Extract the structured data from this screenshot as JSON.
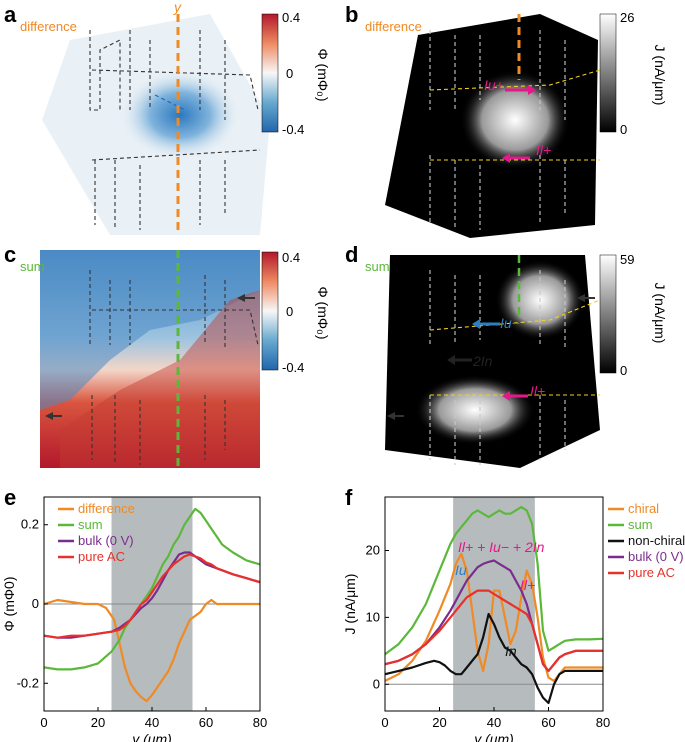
{
  "panels": {
    "a": {
      "label": "a",
      "tag": "difference",
      "cut_label": "y"
    },
    "b": {
      "label": "b",
      "tag": "difference"
    },
    "c": {
      "label": "c",
      "tag": "sum"
    },
    "d": {
      "label": "d",
      "tag": "sum"
    },
    "e": {
      "label": "e"
    },
    "f": {
      "label": "f"
    }
  },
  "colorbars": {
    "phi_diff": {
      "top": "0.4",
      "mid": "0",
      "bottom": "-0.4",
      "label": "Φ (mΦ₀)"
    },
    "j_diff": {
      "top": "26",
      "bottom": "0",
      "label": "J (nA/μm)"
    },
    "phi_sum": {
      "top": "0.4",
      "mid": "0",
      "bottom": "-0.4",
      "label": "Φ (mΦ₀)"
    },
    "j_sum": {
      "top": "59",
      "bottom": "0",
      "label": "J (nA/μm)"
    }
  },
  "annotations": {
    "b_upper": "Iu+",
    "b_lower": "Il+",
    "d_upper": "Iu−",
    "d_mid": "2In",
    "d_lower": "Il+",
    "f_sum_formula": "Il+ + Iu− + 2In",
    "f_iu": "Iu",
    "f_il": "Il+",
    "f_in": "In"
  },
  "colors": {
    "difference": "#f08a24",
    "sum": "#5cb83a",
    "bulk": "#7b2d8e",
    "pure_ac": "#e8312a",
    "non_chiral": "#111111",
    "chiral": "#f08a24",
    "shade": "#a9b0b2"
  },
  "chart_data": [
    {
      "panel": "e",
      "type": "line",
      "xlabel": "y (μm)",
      "ylabel": "Φ (mΦ0)",
      "xlim": [
        0,
        80
      ],
      "ylim": [
        -0.27,
        0.27
      ],
      "xticks": [
        0,
        20,
        40,
        60,
        80
      ],
      "yticks": [
        -0.2,
        0,
        0.2
      ],
      "shaded_region": [
        25,
        55
      ],
      "zero_line": true,
      "legend_position": "top-left",
      "series": [
        {
          "name": "difference",
          "x": [
            0,
            5,
            10,
            15,
            20,
            23,
            26,
            28,
            30,
            32,
            34,
            36,
            38,
            40,
            42,
            44,
            46,
            48,
            50,
            52,
            54,
            56,
            58,
            60,
            62,
            64,
            66,
            70,
            75,
            80
          ],
          "y": [
            0.0,
            0.01,
            0.005,
            0.0,
            0.0,
            -0.01,
            -0.04,
            -0.1,
            -0.16,
            -0.2,
            -0.22,
            -0.235,
            -0.245,
            -0.23,
            -0.21,
            -0.19,
            -0.17,
            -0.14,
            -0.1,
            -0.07,
            -0.04,
            -0.03,
            -0.02,
            0.0,
            0.01,
            0.0,
            0.0,
            0.0,
            0.0,
            0.0
          ]
        },
        {
          "name": "sum",
          "x": [
            0,
            5,
            10,
            15,
            20,
            25,
            28,
            30,
            32,
            34,
            36,
            38,
            40,
            42,
            44,
            46,
            48,
            50,
            52,
            54,
            56,
            58,
            60,
            62,
            64,
            66,
            70,
            75,
            80
          ],
          "y": [
            -0.16,
            -0.165,
            -0.165,
            -0.16,
            -0.15,
            -0.12,
            -0.09,
            -0.06,
            -0.04,
            -0.02,
            0.0,
            0.02,
            0.04,
            0.07,
            0.1,
            0.12,
            0.15,
            0.17,
            0.2,
            0.22,
            0.24,
            0.23,
            0.21,
            0.19,
            0.17,
            0.15,
            0.13,
            0.11,
            0.1
          ]
        },
        {
          "name": "bulk (0 V)",
          "x": [
            0,
            5,
            10,
            15,
            20,
            25,
            28,
            30,
            32,
            34,
            36,
            38,
            40,
            42,
            44,
            46,
            48,
            50,
            52,
            54,
            56,
            58,
            60,
            62,
            64,
            66,
            70,
            75,
            80
          ],
          "y": [
            -0.08,
            -0.085,
            -0.085,
            -0.08,
            -0.075,
            -0.07,
            -0.06,
            -0.05,
            -0.04,
            -0.025,
            -0.01,
            0.0,
            0.015,
            0.035,
            0.06,
            0.085,
            0.105,
            0.125,
            0.13,
            0.13,
            0.12,
            0.11,
            0.1,
            0.095,
            0.09,
            0.085,
            0.075,
            0.065,
            0.055
          ]
        },
        {
          "name": "pure AC",
          "x": [
            0,
            5,
            10,
            15,
            20,
            25,
            28,
            30,
            32,
            34,
            36,
            38,
            40,
            42,
            44,
            46,
            48,
            50,
            52,
            54,
            56,
            58,
            60,
            62,
            64,
            66,
            70,
            75,
            80
          ],
          "y": [
            -0.08,
            -0.085,
            -0.08,
            -0.08,
            -0.075,
            -0.07,
            -0.065,
            -0.055,
            -0.04,
            -0.02,
            0.0,
            0.01,
            0.03,
            0.05,
            0.07,
            0.085,
            0.1,
            0.11,
            0.12,
            0.125,
            0.12,
            0.115,
            0.105,
            0.1,
            0.09,
            0.085,
            0.075,
            0.065,
            0.055
          ]
        }
      ]
    },
    {
      "panel": "f",
      "type": "line",
      "xlabel": "y (μm)",
      "ylabel": "J (nA/μm)",
      "xlim": [
        0,
        80
      ],
      "ylim": [
        -4,
        28
      ],
      "xticks": [
        0,
        20,
        40,
        60,
        80
      ],
      "yticks": [
        0,
        10,
        20
      ],
      "shaded_region": [
        25,
        55
      ],
      "zero_line": true,
      "legend_position": "right",
      "series": [
        {
          "name": "chiral",
          "x": [
            0,
            5,
            10,
            15,
            20,
            24,
            26,
            28,
            30,
            32,
            34,
            36,
            38,
            40,
            42,
            44,
            46,
            48,
            50,
            52,
            54,
            56,
            58,
            60,
            62,
            64,
            66,
            70,
            75,
            80
          ],
          "y": [
            0.5,
            1.5,
            3.5,
            6.5,
            11,
            15,
            18,
            19.5,
            17,
            11,
            5,
            2,
            6,
            14,
            14,
            10,
            6,
            8,
            13,
            17,
            15,
            10,
            4,
            1,
            0.5,
            1.5,
            2.5,
            2.5,
            2.5,
            2.5
          ]
        },
        {
          "name": "sum",
          "x": [
            0,
            5,
            10,
            15,
            20,
            24,
            26,
            28,
            30,
            32,
            34,
            36,
            38,
            40,
            42,
            44,
            46,
            48,
            50,
            52,
            54,
            56,
            58,
            60,
            62,
            64,
            66,
            70,
            75,
            80
          ],
          "y": [
            4.5,
            6,
            8.5,
            12,
            17,
            21,
            22.5,
            23.5,
            24.5,
            25.5,
            26,
            25.5,
            25,
            25.5,
            26,
            25.5,
            25.5,
            26,
            26.5,
            26,
            24,
            18,
            8,
            5,
            5.5,
            6,
            6.5,
            6.7,
            6.7,
            6.8
          ]
        },
        {
          "name": "non-chiral",
          "x": [
            0,
            5,
            10,
            15,
            18,
            20,
            22,
            24,
            26,
            28,
            30,
            32,
            34,
            36,
            38,
            40,
            42,
            44,
            46,
            48,
            50,
            52,
            54,
            56,
            58,
            60,
            62,
            64,
            66,
            70,
            75,
            80
          ],
          "y": [
            1.5,
            2,
            2.5,
            3.2,
            3.5,
            3.3,
            2.8,
            2,
            1.5,
            1.5,
            2.5,
            3.5,
            4.5,
            7,
            10.5,
            9,
            7,
            5.5,
            5,
            4,
            3,
            2.5,
            1.5,
            -0.5,
            -2,
            -2.8,
            0,
            1.5,
            2,
            2,
            2,
            2
          ]
        },
        {
          "name": "bulk (0 V)",
          "x": [
            0,
            5,
            10,
            15,
            20,
            24,
            26,
            28,
            30,
            32,
            34,
            36,
            38,
            40,
            42,
            44,
            46,
            48,
            50,
            52,
            54,
            56,
            58,
            60,
            62,
            64,
            66,
            70,
            75,
            80
          ],
          "y": [
            3,
            3.5,
            4.5,
            6,
            8.5,
            11,
            12.5,
            14,
            15.5,
            16.5,
            17.5,
            18,
            18.3,
            18.5,
            18,
            17.5,
            17,
            15.5,
            14,
            12,
            9,
            6,
            3,
            2,
            3,
            4,
            4.5,
            5,
            5,
            5
          ]
        },
        {
          "name": "pure AC",
          "x": [
            0,
            5,
            10,
            15,
            20,
            24,
            26,
            28,
            30,
            32,
            34,
            36,
            38,
            40,
            42,
            44,
            46,
            48,
            50,
            52,
            54,
            56,
            58,
            60,
            62,
            64,
            66,
            70,
            75,
            80
          ],
          "y": [
            3,
            3.5,
            4.5,
            6,
            8,
            10,
            11,
            12,
            13,
            13.5,
            14,
            14,
            14,
            13.5,
            13,
            12.5,
            12,
            11.5,
            11,
            10.5,
            9,
            6,
            3,
            2,
            3,
            4,
            4.5,
            5,
            5,
            5
          ]
        }
      ]
    }
  ]
}
